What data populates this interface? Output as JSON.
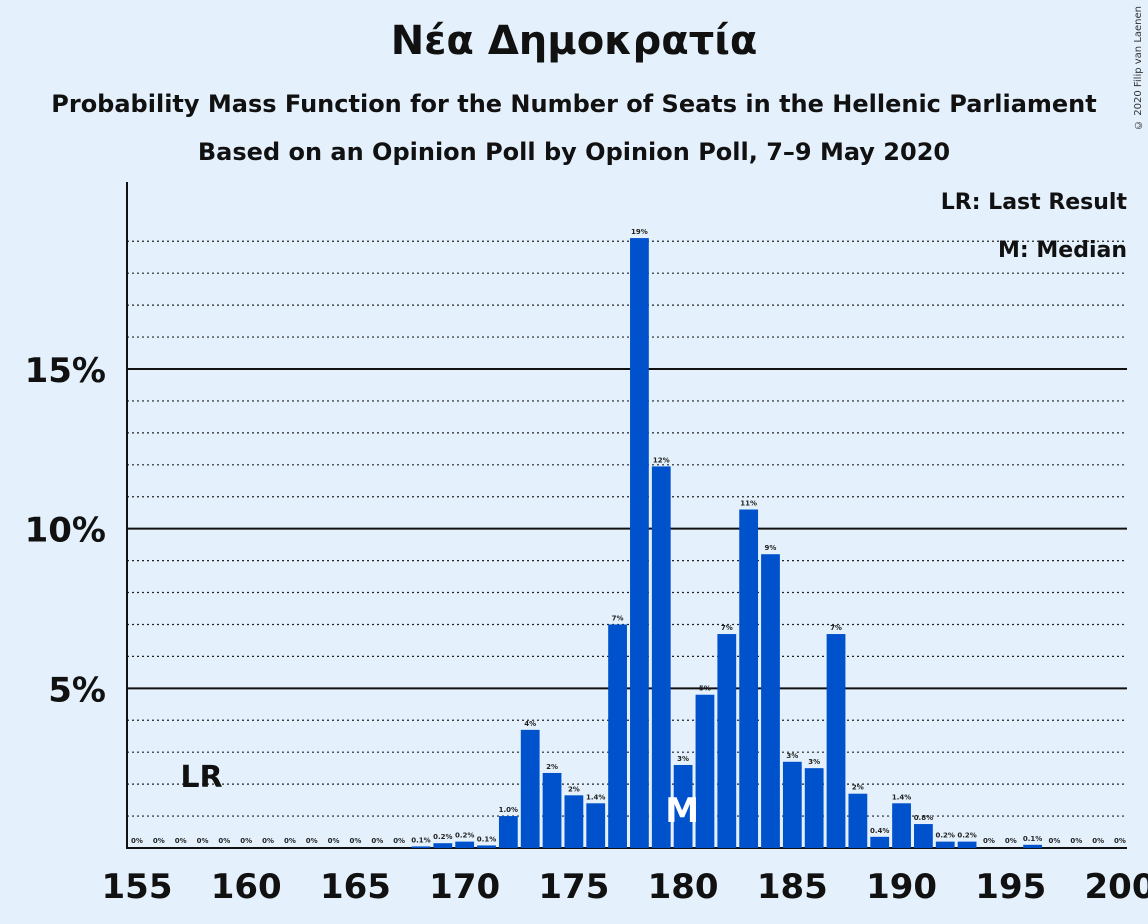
{
  "chart_data": {
    "type": "bar",
    "title": "Νέα Δημοκρατία",
    "subtitle": "Probability Mass Function for the Number of Seats in the Hellenic Parliament",
    "subtitle2": "Based on an Opinion Poll by Opinion Poll, 7–9 May 2020",
    "copyright": "© 2020 Filip van Laenen",
    "x": [
      155,
      156,
      157,
      158,
      159,
      160,
      161,
      162,
      163,
      164,
      165,
      166,
      167,
      168,
      169,
      170,
      171,
      172,
      173,
      174,
      175,
      176,
      177,
      178,
      179,
      180,
      181,
      182,
      183,
      184,
      185,
      186,
      187,
      188,
      189,
      190,
      191,
      192,
      193,
      194,
      195,
      196,
      197,
      198,
      199,
      200
    ],
    "values": [
      0,
      0,
      0,
      0,
      0,
      0,
      0,
      0,
      0,
      0,
      0,
      0,
      0,
      0.05,
      0.15,
      0.2,
      0.08,
      1.0,
      3.7,
      2.35,
      1.65,
      1.4,
      7.0,
      19.1,
      11.95,
      2.6,
      4.8,
      6.7,
      10.6,
      9.2,
      2.7,
      2.5,
      6.7,
      1.7,
      0.35,
      1.4,
      0.75,
      0.2,
      0.2,
      0,
      0,
      0.1,
      0,
      0,
      0,
      0
    ],
    "labels": [
      "0%",
      "0%",
      "0%",
      "0%",
      "0%",
      "0%",
      "0%",
      "0%",
      "0%",
      "0%",
      "0%",
      "0%",
      "0%",
      "0.1%",
      "0.2%",
      "0.2%",
      "0.1%",
      "1.0%",
      "4%",
      "2%",
      "2%",
      "1.4%",
      "7%",
      "19%",
      "12%",
      "3%",
      "5%",
      "7%",
      "11%",
      "9%",
      "3%",
      "3%",
      "7%",
      "2%",
      "0.4%",
      "1.4%",
      "0.8%",
      "0.2%",
      "0.2%",
      "0%",
      "0%",
      "0.1%",
      "0%",
      "0%",
      "0%",
      "0%"
    ],
    "xticks": [
      155,
      160,
      165,
      170,
      175,
      180,
      185,
      190,
      195,
      200
    ],
    "yticks": [
      {
        "value": 5,
        "label": "5%"
      },
      {
        "value": 10,
        "label": "10%"
      },
      {
        "value": 15,
        "label": "15%"
      }
    ],
    "ylim": [
      0,
      20.5
    ],
    "last_result": 158,
    "last_result_label": "LR",
    "median": 180,
    "median_label": "M",
    "legend": [
      "LR: Last Result",
      "M: Median"
    ],
    "legend_position": "top-right",
    "bar_color": "#0052CC"
  }
}
